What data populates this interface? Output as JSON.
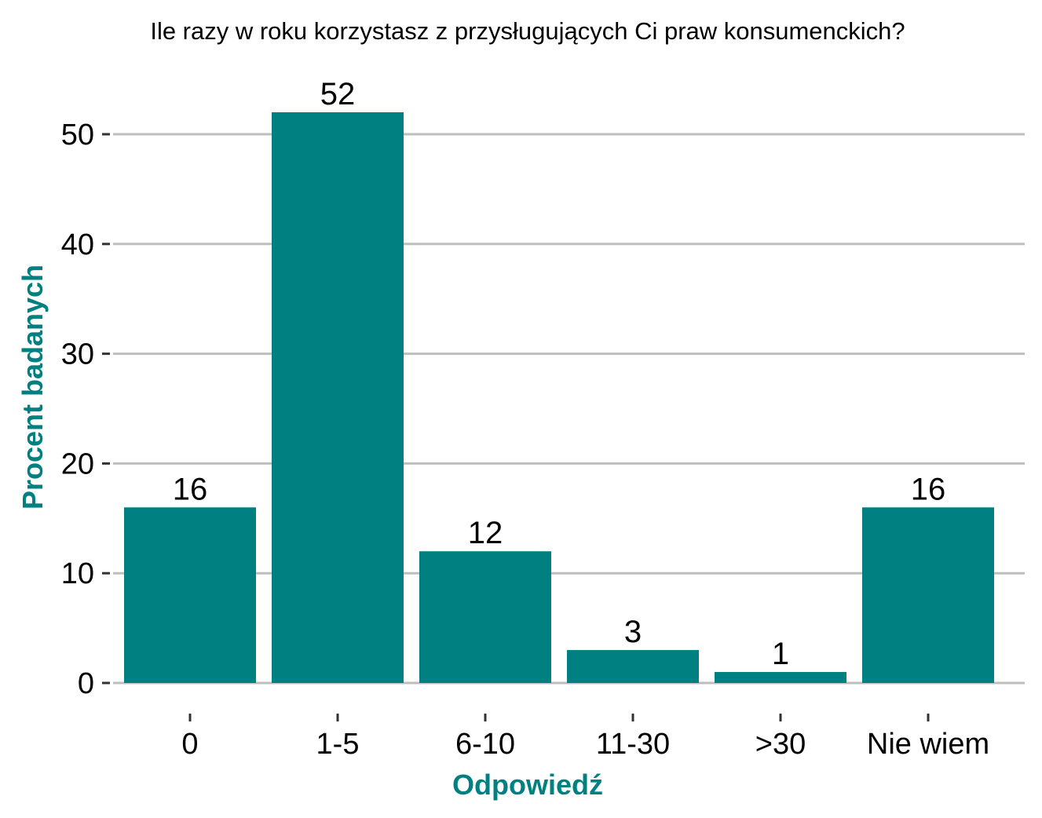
{
  "colors": {
    "bar": "#008080",
    "axis_title": "#008080",
    "grid": "#bebebe",
    "text": "#000000"
  },
  "chart_data": {
    "type": "bar",
    "title": "Ile razy w roku korzystasz z przysługujących Ci praw konsumenckich?",
    "xlabel": "Odpowiedź",
    "ylabel": "Procent badanych",
    "categories": [
      "0",
      "1-5",
      "6-10",
      "11-30",
      ">30",
      "Nie wiem"
    ],
    "values": [
      16,
      52,
      12,
      3,
      1,
      16
    ],
    "data_labels": [
      "16",
      "52",
      "12",
      "3",
      "1",
      "16"
    ],
    "yticks": [
      0,
      10,
      20,
      30,
      40,
      50
    ],
    "ylim": [
      0,
      55
    ],
    "grid": "horizontal"
  }
}
